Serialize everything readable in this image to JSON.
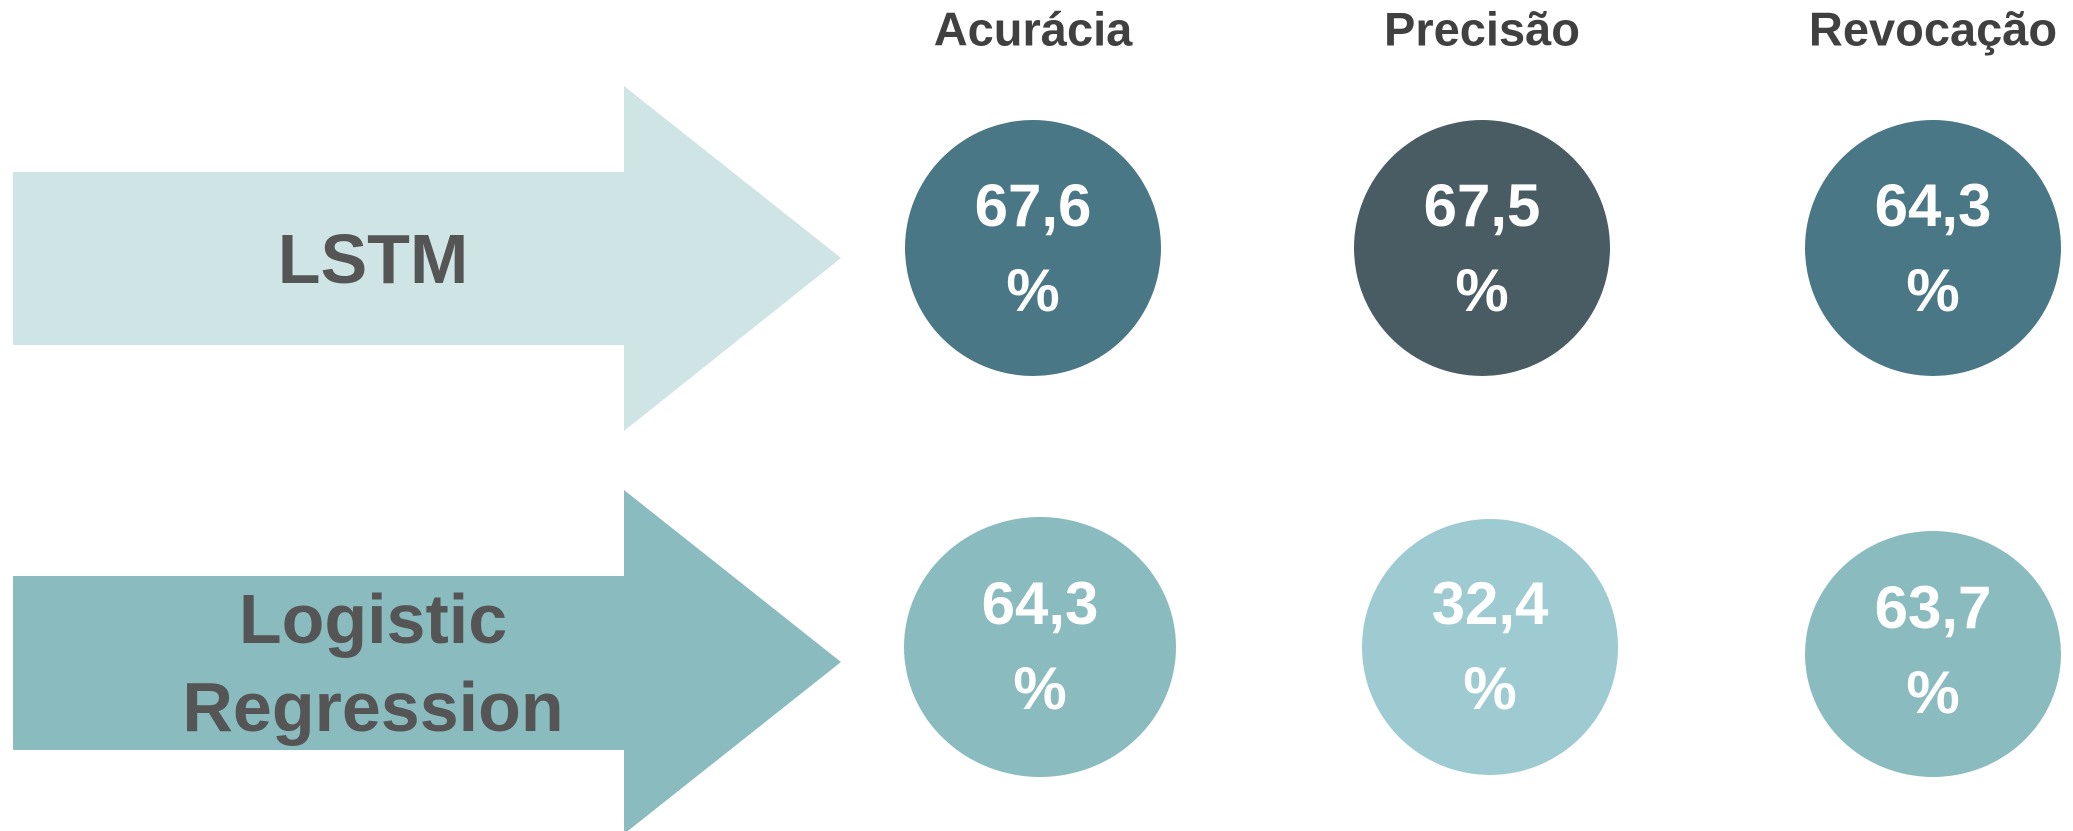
{
  "headers": [
    "Acurácia",
    "Precisão",
    "Revocação"
  ],
  "rows": [
    {
      "label": "LSTM",
      "cells": [
        {
          "value": "67,6",
          "unit": "%"
        },
        {
          "value": "67,5",
          "unit": "%"
        },
        {
          "value": "64,3",
          "unit": "%"
        }
      ]
    },
    {
      "label": "Logistic Regression",
      "cells": [
        {
          "value": "64,3",
          "unit": "%"
        },
        {
          "value": "32,4",
          "unit": "%"
        },
        {
          "value": "63,7",
          "unit": "%"
        }
      ]
    }
  ]
}
